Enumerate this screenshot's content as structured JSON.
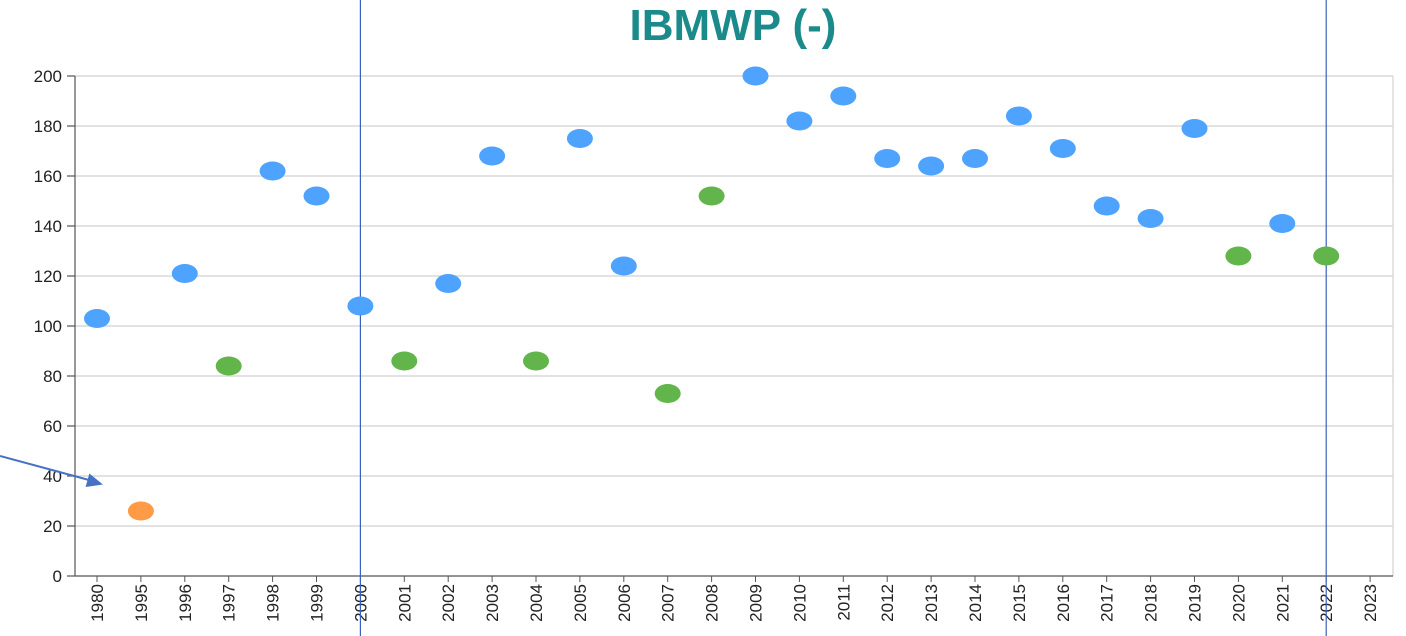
{
  "chart_data": {
    "type": "scatter",
    "title": "IBMWP (-)",
    "xlabel": "",
    "ylabel": "",
    "categories": [
      "1980",
      "1995",
      "1996",
      "1997",
      "1998",
      "1999",
      "2000",
      "2001",
      "2002",
      "2003",
      "2004",
      "2005",
      "2006",
      "2007",
      "2008",
      "2009",
      "2010",
      "2011",
      "2012",
      "2013",
      "2014",
      "2015",
      "2016",
      "2017",
      "2018",
      "2019",
      "2020",
      "2021",
      "2022",
      "2023"
    ],
    "ylim": [
      0,
      200
    ],
    "yticks": [
      0,
      20,
      40,
      60,
      80,
      100,
      120,
      140,
      160,
      180,
      200
    ],
    "grid": true,
    "points": [
      {
        "x": "1980",
        "y": 103,
        "color": "#4da3ff"
      },
      {
        "x": "1995",
        "y": 26,
        "color": "#ff9a47"
      },
      {
        "x": "1996",
        "y": 121,
        "color": "#4da3ff"
      },
      {
        "x": "1997",
        "y": 84,
        "color": "#62b54a"
      },
      {
        "x": "1998",
        "y": 162,
        "color": "#4da3ff"
      },
      {
        "x": "1999",
        "y": 152,
        "color": "#4da3ff"
      },
      {
        "x": "2000",
        "y": 108,
        "color": "#4da3ff"
      },
      {
        "x": "2001",
        "y": 86,
        "color": "#62b54a"
      },
      {
        "x": "2002",
        "y": 117,
        "color": "#4da3ff"
      },
      {
        "x": "2003",
        "y": 168,
        "color": "#4da3ff"
      },
      {
        "x": "2004",
        "y": 86,
        "color": "#62b54a"
      },
      {
        "x": "2005",
        "y": 175,
        "color": "#4da3ff"
      },
      {
        "x": "2006",
        "y": 124,
        "color": "#4da3ff"
      },
      {
        "x": "2007",
        "y": 73,
        "color": "#62b54a"
      },
      {
        "x": "2008",
        "y": 152,
        "color": "#62b54a"
      },
      {
        "x": "2009",
        "y": 200,
        "color": "#4da3ff"
      },
      {
        "x": "2010",
        "y": 182,
        "color": "#4da3ff"
      },
      {
        "x": "2011",
        "y": 192,
        "color": "#4da3ff"
      },
      {
        "x": "2012",
        "y": 167,
        "color": "#4da3ff"
      },
      {
        "x": "2013",
        "y": 164,
        "color": "#4da3ff"
      },
      {
        "x": "2014",
        "y": 167,
        "color": "#4da3ff"
      },
      {
        "x": "2015",
        "y": 184,
        "color": "#4da3ff"
      },
      {
        "x": "2016",
        "y": 171,
        "color": "#4da3ff"
      },
      {
        "x": "2017",
        "y": 148,
        "color": "#4da3ff"
      },
      {
        "x": "2018",
        "y": 143,
        "color": "#4da3ff"
      },
      {
        "x": "2019",
        "y": 179,
        "color": "#4da3ff"
      },
      {
        "x": "2020",
        "y": 128,
        "color": "#62b54a"
      },
      {
        "x": "2021",
        "y": 141,
        "color": "#4da3ff"
      },
      {
        "x": "2022",
        "y": 128,
        "color": "#62b54a"
      }
    ],
    "reference_lines_x": [
      "2000",
      "2022"
    ],
    "annotation": {
      "type": "arrow",
      "target_x": "1995",
      "target_y": 35
    }
  },
  "colors": {
    "title": "#1a8a8a",
    "grid": "#d9d9d9",
    "axis": "#555555",
    "reference_line": "#3b5fbf",
    "arrow": "#4472c4"
  }
}
